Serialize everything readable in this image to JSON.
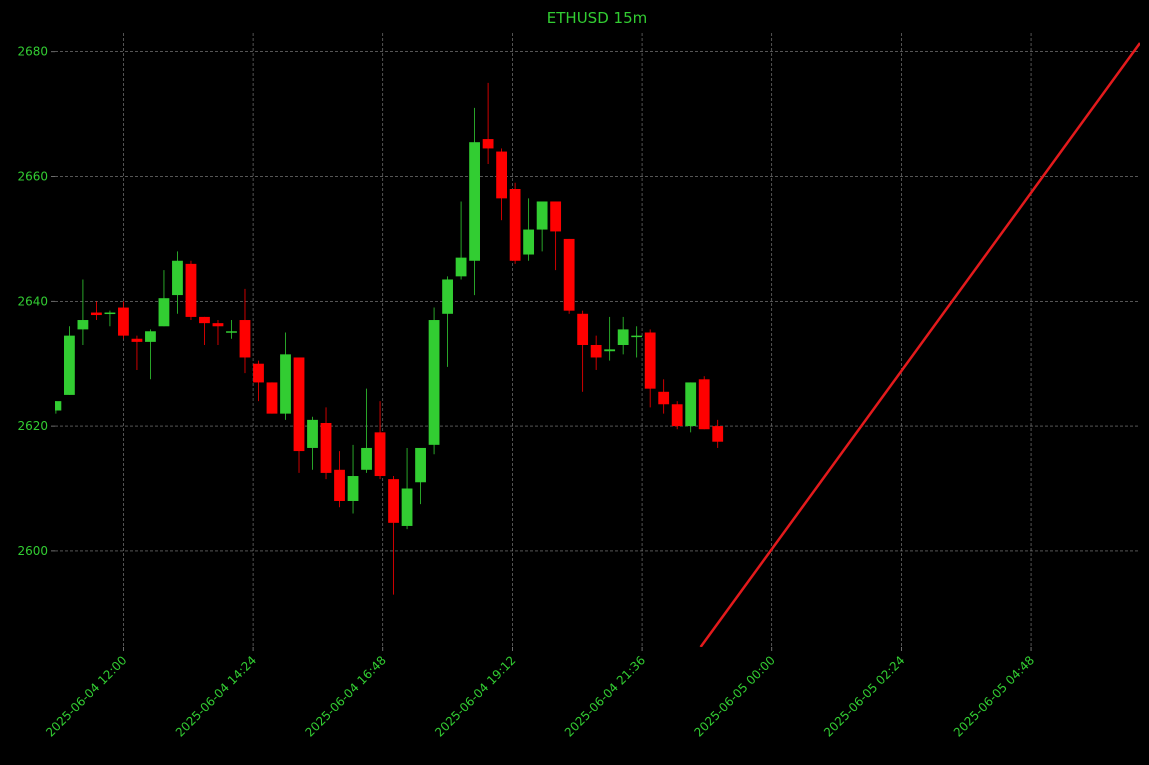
{
  "chart_data": {
    "type": "candlestick",
    "title": "ETHUSD 15m",
    "x": [
      "2025-06-04 10:45",
      "2025-06-04 11:00",
      "2025-06-04 11:15",
      "2025-06-04 11:30",
      "2025-06-04 11:45",
      "2025-06-04 12:00",
      "2025-06-04 12:15",
      "2025-06-04 12:30",
      "2025-06-04 12:45",
      "2025-06-04 13:00",
      "2025-06-04 13:15",
      "2025-06-04 13:30",
      "2025-06-04 13:45",
      "2025-06-04 14:00",
      "2025-06-04 14:15",
      "2025-06-04 14:30",
      "2025-06-04 14:45",
      "2025-06-04 15:00",
      "2025-06-04 15:15",
      "2025-06-04 15:30",
      "2025-06-04 15:45",
      "2025-06-04 16:00",
      "2025-06-04 16:15",
      "2025-06-04 16:30",
      "2025-06-04 16:45",
      "2025-06-04 17:00",
      "2025-06-04 17:15",
      "2025-06-04 17:30",
      "2025-06-04 17:45",
      "2025-06-04 18:00",
      "2025-06-04 18:15",
      "2025-06-04 18:30",
      "2025-06-04 18:45",
      "2025-06-04 19:00",
      "2025-06-04 19:15",
      "2025-06-04 19:30",
      "2025-06-04 19:45",
      "2025-06-04 20:00",
      "2025-06-04 20:15",
      "2025-06-04 20:30",
      "2025-06-04 20:45",
      "2025-06-04 21:00",
      "2025-06-04 21:15",
      "2025-06-04 21:30",
      "2025-06-04 21:45",
      "2025-06-04 22:00",
      "2025-06-04 22:15",
      "2025-06-04 22:30",
      "2025-06-04 22:45",
      "2025-06-04 23:00"
    ],
    "open": [
      2622.5,
      2625,
      2635.5,
      2638.2,
      2638.2,
      2639,
      2634,
      2633.5,
      2636,
      2641,
      2646,
      2637.5,
      2636.5,
      2635,
      2637,
      2630,
      2627,
      2622,
      2631,
      2616.5,
      2620.5,
      2613,
      2608,
      2613,
      2619,
      2611.5,
      2604,
      2611,
      2617,
      2638,
      2644,
      2646.5,
      2666,
      2664,
      2658,
      2647.5,
      2651.5,
      2656,
      2650,
      2638,
      2633,
      2632,
      2633,
      2634.3,
      2635,
      2625.5,
      2623.5,
      2620,
      2627.5,
      2620
    ],
    "high": [
      2624,
      2636,
      2643.5,
      2640,
      2638.5,
      2640,
      2634.5,
      2635.5,
      2645,
      2648,
      2646.5,
      2637.5,
      2637,
      2637,
      2642,
      2630.5,
      2627,
      2635,
      2631,
      2621.5,
      2623,
      2616,
      2617,
      2626,
      2624,
      2612,
      2616.5,
      2616.5,
      2639,
      2644,
      2656,
      2671,
      2675,
      2664.5,
      2659,
      2656.5,
      2656,
      2656,
      2650,
      2638.5,
      2634.5,
      2637.5,
      2637.5,
      2636,
      2635.5,
      2627.5,
      2624,
      2627,
      2628,
      2621
    ],
    "low": [
      2622,
      2625,
      2633,
      2637,
      2636,
      2634,
      2629,
      2627.5,
      2636,
      2638,
      2637,
      2633,
      2633,
      2634,
      2628.5,
      2624,
      2622,
      2621,
      2612.5,
      2613,
      2611.5,
      2607,
      2606,
      2612.5,
      2611.5,
      2593,
      2603.5,
      2607.5,
      2615.5,
      2629.5,
      2643.5,
      2641,
      2662,
      2653,
      2646,
      2646.5,
      2648,
      2645,
      2638,
      2625.5,
      2629,
      2630.5,
      2631.5,
      2631,
      2623,
      2622,
      2619.5,
      2619,
      2619.5,
      2616.5
    ],
    "close": [
      2624,
      2634.5,
      2637,
      2637.8,
      2638.2,
      2634.5,
      2633.5,
      2635.2,
      2640.5,
      2646.5,
      2637.5,
      2636.5,
      2636,
      2635.2,
      2631,
      2627,
      2622,
      2631.5,
      2616,
      2621,
      2612.5,
      2608,
      2612,
      2616.5,
      2612,
      2604.5,
      2610,
      2616.5,
      2637,
      2643.5,
      2647,
      2665.5,
      2664.5,
      2656.5,
      2646.5,
      2651.5,
      2656,
      2651.2,
      2638.5,
      2633,
      2631,
      2632.3,
      2635.5,
      2634.5,
      2626,
      2623.5,
      2620,
      2627,
      2619.5,
      2617.5
    ],
    "up_color": "#32cd32",
    "down_color": "#ff0000",
    "line": {
      "color": "#e31a1c",
      "x": [
        "2025-06-04 22:41",
        "2025-06-05 06:49"
      ],
      "values": [
        2584.6,
        2681.4
      ]
    },
    "xlim": [
      "2025-06-04 10:44",
      "2025-06-05 06:49"
    ],
    "xticks": [
      "2025-06-04 12:00",
      "2025-06-04 14:24",
      "2025-06-04 16:48",
      "2025-06-04 19:12",
      "2025-06-04 21:36",
      "2025-06-05 00:00",
      "2025-06-05 02:24",
      "2025-06-05 04:48"
    ],
    "ylim": [
      2584.6,
      2683.0
    ],
    "yticks": [
      2600,
      2620,
      2640,
      2660,
      2680
    ],
    "grid": true
  }
}
